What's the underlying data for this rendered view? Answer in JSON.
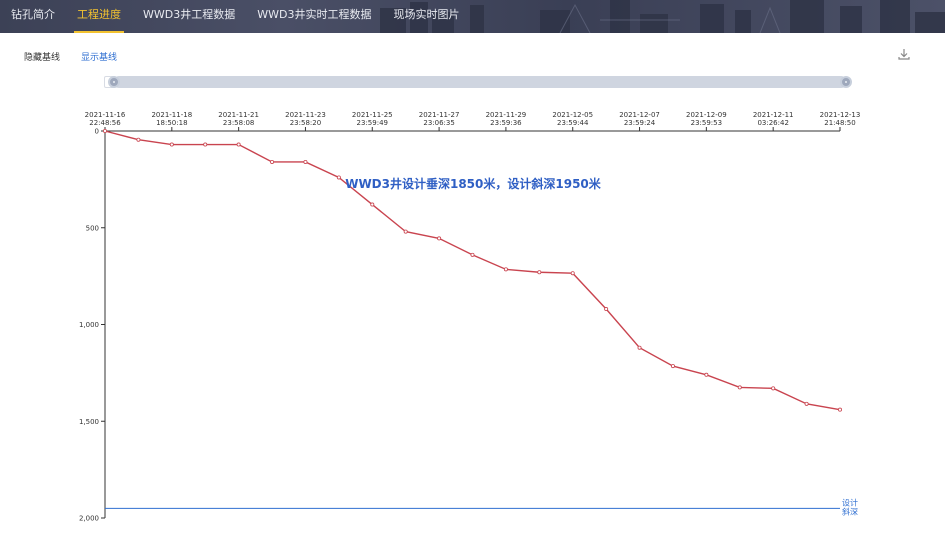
{
  "nav": {
    "tabs": [
      {
        "label": "钻孔简介",
        "active": false
      },
      {
        "label": "工程进度",
        "active": true
      },
      {
        "label": "WWD3井工程数据",
        "active": false
      },
      {
        "label": "WWD3井实时工程数据",
        "active": false
      },
      {
        "label": "现场实时图片",
        "active": false
      }
    ]
  },
  "toolbar": {
    "hide_baseline_label": "隐藏基线",
    "show_baseline_label": "显示基线",
    "download_icon": "download-icon"
  },
  "slider": {
    "start_fraction": 0.0,
    "end_fraction": 1.0
  },
  "colors": {
    "line": "#c9444f",
    "accent": "#f2c230",
    "link": "#2f6fd1",
    "baseline": "#2f6fd1",
    "annotation": "#2f5fc4"
  },
  "chart_data": {
    "type": "line",
    "title": "",
    "annotation": "WWD3井设计垂深1850米，设计斜深1950米",
    "baseline": {
      "value": 1950,
      "label_line1": "设计",
      "label_line2": "斜深"
    },
    "x_ticks": [
      [
        "2021-11-16",
        "22:48:56"
      ],
      [
        "2021-11-18",
        "18:50:18"
      ],
      [
        "2021-11-21",
        "23:58:08"
      ],
      [
        "2021-11-23",
        "23:58:20"
      ],
      [
        "2021-11-25",
        "23:59:49"
      ],
      [
        "2021-11-27",
        "23:06:35"
      ],
      [
        "2021-11-29",
        "23:59:36"
      ],
      [
        "2021-12-05",
        "23:59:44"
      ],
      [
        "2021-12-07",
        "23:59:24"
      ],
      [
        "2021-12-09",
        "23:59:53"
      ],
      [
        "2021-12-11",
        "03:26:42"
      ],
      [
        "2021-12-13",
        "21:48:50"
      ]
    ],
    "y_ticks": [
      "0",
      "500",
      "1,000",
      "1,500",
      "2,000"
    ],
    "ylim": [
      0,
      2000
    ],
    "y_inverted": true,
    "values": [
      0,
      45,
      70,
      70,
      70,
      160,
      160,
      240,
      380,
      520,
      555,
      640,
      715,
      730,
      735,
      920,
      1120,
      1215,
      1260,
      1325,
      1330,
      1410,
      1440
    ]
  }
}
